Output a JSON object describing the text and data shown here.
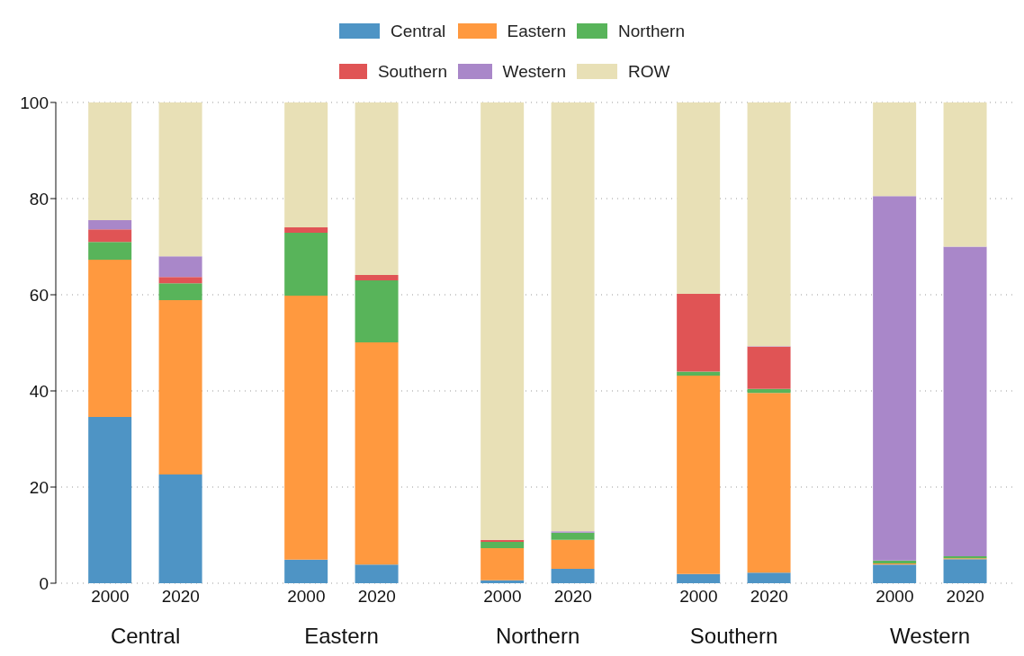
{
  "chart_data": {
    "type": "bar",
    "stacked": true,
    "categories": [
      "2000",
      "2020",
      "2000",
      "2020",
      "2000",
      "2020",
      "2000",
      "2020",
      "2000",
      "2020"
    ],
    "annotations": [
      "Central",
      "Eastern",
      "Northern",
      "Southern",
      "Western"
    ],
    "series": [
      {
        "name": "Central",
        "color": "#4e94c5",
        "values": [
          34.6,
          22.6,
          4.9,
          3.9,
          0.6,
          3.0,
          1.9,
          2.2,
          3.9,
          5.0
        ]
      },
      {
        "name": "Eastern",
        "color": "#ff993f",
        "values": [
          32.7,
          36.3,
          54.9,
          46.2,
          6.7,
          6.0,
          41.3,
          37.4,
          0.2,
          0.2
        ]
      },
      {
        "name": "Northern",
        "color": "#58b45a",
        "values": [
          3.7,
          3.5,
          13.1,
          12.9,
          1.3,
          1.5,
          0.8,
          0.8,
          0.6,
          0.4
        ]
      },
      {
        "name": "Southern",
        "color": "#e05455",
        "values": [
          2.6,
          1.3,
          1.1,
          1.1,
          0.4,
          0,
          16.2,
          8.8,
          0,
          0
        ]
      },
      {
        "name": "Western",
        "color": "#a987c9",
        "values": [
          1.9,
          4.3,
          0,
          0,
          0,
          0.3,
          0,
          0.1,
          75.8,
          64.4
        ]
      },
      {
        "name": "ROW",
        "color": "#e8e0b6",
        "values": [
          24.5,
          32.0,
          26.0,
          35.9,
          91.0,
          89.2,
          39.8,
          50.7,
          19.5,
          30.0
        ]
      }
    ],
    "ylim": [
      0,
      100
    ],
    "yticks": [
      0,
      20,
      40,
      60,
      80,
      100
    ],
    "grid": "y",
    "legend": "top"
  }
}
